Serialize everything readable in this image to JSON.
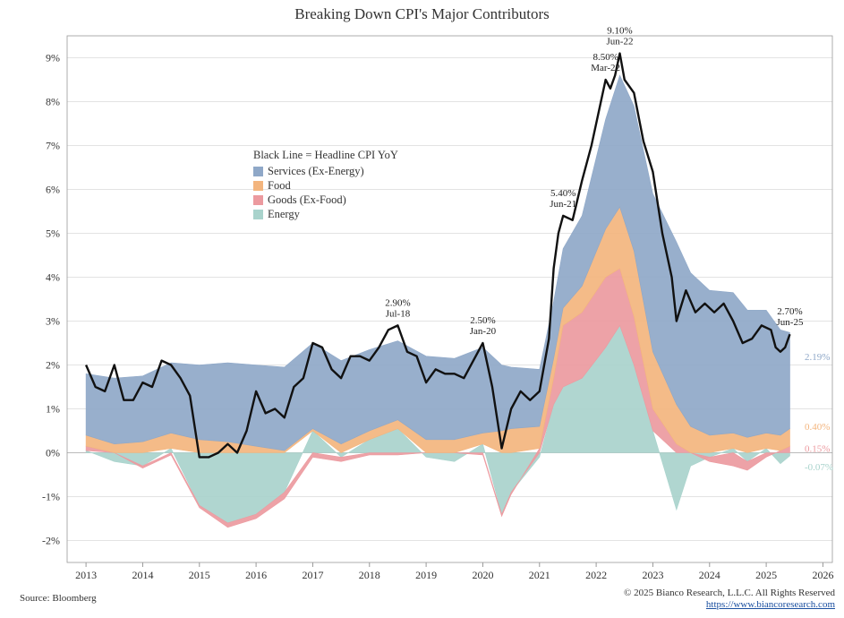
{
  "title": "Breaking Down CPI's Major Contributors",
  "source": "Source: Bloomberg",
  "copyright": "© 2025 Bianco Research, L.L.C. All Rights Reserved",
  "website": "https://www.biancoresearch.com",
  "legend_note": "Black Line = Headline CPI YoY",
  "colors": {
    "services": "#8fa8c8",
    "food": "#f3b57e",
    "goods": "#ec9a9f",
    "energy": "#a9d3cc",
    "headline": "#111111"
  },
  "chart_data": {
    "type": "area",
    "stacked": true,
    "title": "Breaking Down CPI's Major Contributors",
    "x_ticks": [
      "2013",
      "2014",
      "2015",
      "2016",
      "2017",
      "2018",
      "2019",
      "2020",
      "2021",
      "2022",
      "2023",
      "2024",
      "2025",
      "2026"
    ],
    "y_ticks": [
      "-2%",
      "-1%",
      "0%",
      "1%",
      "2%",
      "3%",
      "4%",
      "5%",
      "6%",
      "7%",
      "8%",
      "9%"
    ],
    "ylim": [
      -2.5,
      9.5
    ],
    "xlim": [
      "2012-09",
      "2026-03"
    ],
    "x": [
      "2013-01",
      "2013-07",
      "2014-01",
      "2014-07",
      "2015-01",
      "2015-07",
      "2016-01",
      "2016-07",
      "2017-01",
      "2017-07",
      "2018-01",
      "2018-07",
      "2019-01",
      "2019-07",
      "2020-01",
      "2020-05",
      "2020-07",
      "2021-01",
      "2021-04",
      "2021-06",
      "2021-10",
      "2022-03",
      "2022-06",
      "2022-09",
      "2023-01",
      "2023-06",
      "2023-09",
      "2024-01",
      "2024-06",
      "2024-09",
      "2025-01",
      "2025-04",
      "2025-06"
    ],
    "series": [
      {
        "name": "Energy",
        "values": [
          0.05,
          -0.2,
          -0.3,
          0.1,
          -1.2,
          -1.6,
          -1.4,
          -0.9,
          0.5,
          -0.1,
          0.3,
          0.55,
          -0.1,
          -0.2,
          0.2,
          -1.4,
          -0.9,
          -0.1,
          1.1,
          1.5,
          1.7,
          2.4,
          2.9,
          2.0,
          0.5,
          -1.3,
          -0.3,
          -0.1,
          0.1,
          -0.2,
          0.1,
          -0.25,
          -0.07
        ]
      },
      {
        "name": "Goods (Ex-Food)",
        "values": [
          0.1,
          0.0,
          -0.05,
          -0.05,
          -0.05,
          -0.1,
          -0.1,
          -0.15,
          -0.1,
          -0.1,
          -0.05,
          -0.05,
          0.0,
          0.0,
          -0.05,
          -0.05,
          -0.05,
          0.1,
          0.6,
          1.4,
          1.5,
          1.6,
          1.3,
          1.1,
          0.5,
          0.2,
          0.0,
          -0.1,
          -0.3,
          -0.2,
          -0.1,
          0.05,
          0.15
        ]
      },
      {
        "name": "Food",
        "values": [
          0.25,
          0.2,
          0.25,
          0.35,
          0.3,
          0.25,
          0.15,
          0.05,
          0.05,
          0.2,
          0.2,
          0.2,
          0.3,
          0.3,
          0.25,
          0.5,
          0.55,
          0.5,
          0.45,
          0.4,
          0.6,
          1.1,
          1.4,
          1.5,
          1.3,
          0.9,
          0.6,
          0.4,
          0.35,
          0.35,
          0.35,
          0.35,
          0.4
        ]
      },
      {
        "name": "Services (Ex-Energy)",
        "values": [
          1.4,
          1.5,
          1.5,
          1.6,
          1.7,
          1.8,
          1.85,
          1.9,
          1.95,
          1.9,
          1.85,
          1.8,
          1.9,
          1.85,
          1.95,
          1.5,
          1.4,
          1.3,
          1.3,
          1.35,
          1.6,
          2.5,
          3.0,
          3.3,
          3.6,
          3.7,
          3.5,
          3.3,
          3.2,
          2.9,
          2.8,
          2.4,
          2.19
        ]
      }
    ],
    "headline": {
      "name": "Headline CPI YoY",
      "x": [
        "2013-01",
        "2013-03",
        "2013-05",
        "2013-07",
        "2013-09",
        "2013-11",
        "2014-01",
        "2014-03",
        "2014-05",
        "2014-07",
        "2014-09",
        "2014-11",
        "2015-01",
        "2015-03",
        "2015-05",
        "2015-07",
        "2015-09",
        "2015-11",
        "2016-01",
        "2016-03",
        "2016-05",
        "2016-07",
        "2016-09",
        "2016-11",
        "2017-01",
        "2017-03",
        "2017-05",
        "2017-07",
        "2017-09",
        "2017-11",
        "2018-01",
        "2018-03",
        "2018-05",
        "2018-07",
        "2018-09",
        "2018-11",
        "2019-01",
        "2019-03",
        "2019-05",
        "2019-07",
        "2019-09",
        "2019-11",
        "2020-01",
        "2020-03",
        "2020-05",
        "2020-07",
        "2020-09",
        "2020-11",
        "2021-01",
        "2021-03",
        "2021-04",
        "2021-05",
        "2021-06",
        "2021-08",
        "2021-10",
        "2021-12",
        "2022-01",
        "2022-03",
        "2022-04",
        "2022-05",
        "2022-06",
        "2022-07",
        "2022-09",
        "2022-11",
        "2023-01",
        "2023-03",
        "2023-05",
        "2023-06",
        "2023-08",
        "2023-10",
        "2023-12",
        "2024-02",
        "2024-04",
        "2024-06",
        "2024-08",
        "2024-10",
        "2024-12",
        "2025-02",
        "2025-03",
        "2025-04",
        "2025-05",
        "2025-06"
      ],
      "values": [
        2.0,
        1.5,
        1.4,
        2.0,
        1.2,
        1.2,
        1.6,
        1.5,
        2.1,
        2.0,
        1.7,
        1.3,
        -0.1,
        -0.1,
        0.0,
        0.2,
        0.0,
        0.5,
        1.4,
        0.9,
        1.0,
        0.8,
        1.5,
        1.7,
        2.5,
        2.4,
        1.9,
        1.7,
        2.2,
        2.2,
        2.1,
        2.4,
        2.8,
        2.9,
        2.3,
        2.2,
        1.6,
        1.9,
        1.8,
        1.8,
        1.7,
        2.1,
        2.5,
        1.5,
        0.1,
        1.0,
        1.4,
        1.2,
        1.4,
        2.6,
        4.2,
        5.0,
        5.4,
        5.3,
        6.2,
        7.0,
        7.5,
        8.5,
        8.3,
        8.6,
        9.1,
        8.5,
        8.2,
        7.1,
        6.4,
        5.0,
        4.0,
        3.0,
        3.7,
        3.2,
        3.4,
        3.2,
        3.4,
        3.0,
        2.5,
        2.6,
        2.9,
        2.8,
        2.4,
        2.3,
        2.4,
        2.7
      ]
    },
    "annotations": [
      {
        "value": "2.90%",
        "date": "Jul-18",
        "x": "2018-07",
        "y": 2.9
      },
      {
        "value": "2.50%",
        "date": "Jan-20",
        "x": "2020-01",
        "y": 2.5
      },
      {
        "value": "5.40%",
        "date": "Jun-21",
        "x": "2021-06",
        "y": 5.4
      },
      {
        "value": "8.50%",
        "date": "Mar-22",
        "x": "2022-03",
        "y": 8.5
      },
      {
        "value": "9.10%",
        "date": "Jun-22",
        "x": "2022-06",
        "y": 9.1
      },
      {
        "value": "2.70%",
        "date": "Jun-25",
        "x": "2025-06",
        "y": 2.7
      }
    ],
    "end_labels": [
      {
        "series": "Services (Ex-Energy)",
        "text": "2.19%",
        "y": 2.19
      },
      {
        "series": "Food",
        "text": "0.40%",
        "y": 0.6
      },
      {
        "series": "Goods (Ex-Food)",
        "text": "0.15%",
        "y": 0.1
      },
      {
        "series": "Energy",
        "text": "-0.07%",
        "y": -0.32
      }
    ],
    "legend_order": [
      "Services (Ex-Energy)",
      "Food",
      "Goods (Ex-Food)",
      "Energy"
    ]
  }
}
